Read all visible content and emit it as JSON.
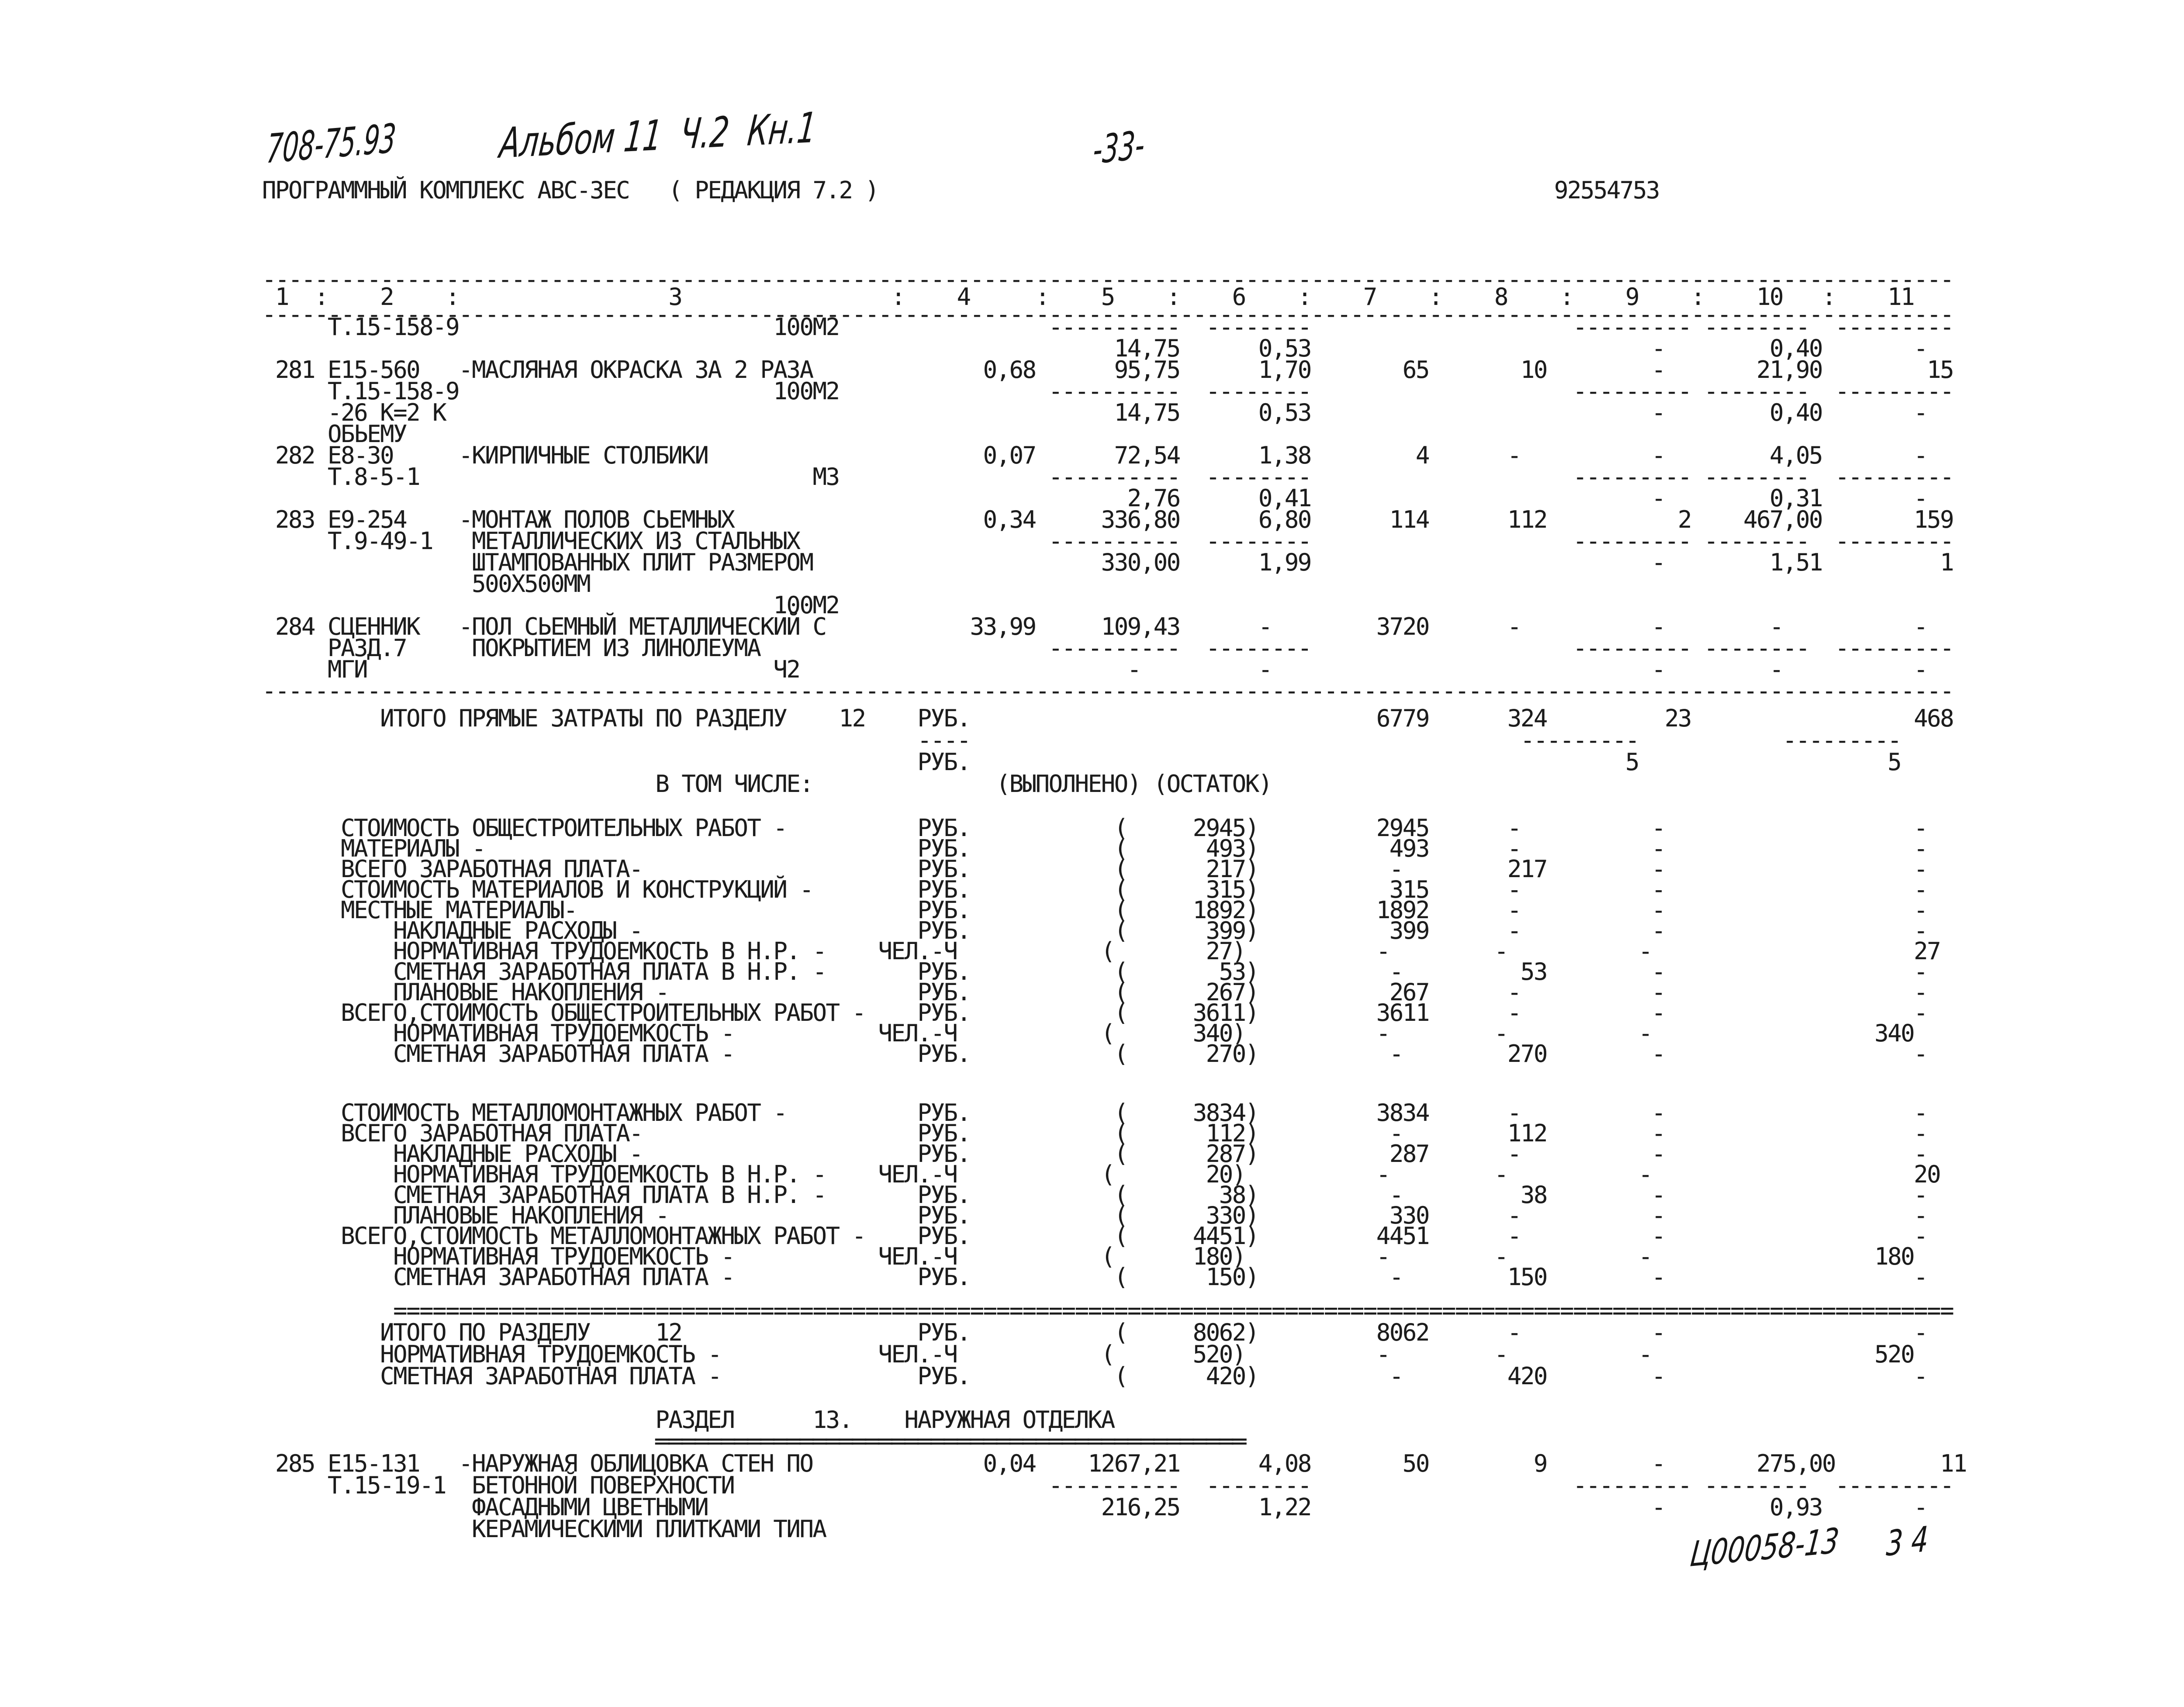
{
  "document": {
    "handwriting": {
      "top_left_code": "708-75.93",
      "top_album": "Альбом 11  Ч.2  Кн.1",
      "page_number": "-33-",
      "bottom_code": "Ц00058-13",
      "bottom_sheet": "3 4"
    },
    "typed_header": {
      "program_line": "ПРОГРАММНЫЙ КОМПЛЕКС АВС-3ЕС   ( РЕДАКЦИЯ 7.2 )",
      "doc_number": "92554753"
    },
    "table_columns": [
      "1",
      "2",
      "3",
      "4",
      "5",
      "6",
      "7",
      "8",
      "9",
      "10",
      "11"
    ],
    "sections": {
      "table_head": [
        "---------------------------------------------------------------------------------------------------------------------------------",
        " 1  :    2    :                3                :    4     :    5    :    6    :    7    :    8    :    9    :    10   :    11",
        "---------------------------------------------------------------------------------------------------------------------------------"
      ],
      "rows_section_12": [
        "     Т.15-158-9                        100М2                ----------  --------                    --------- --------  ---------",
        "                                                                 14,75      0,53                          -        0,40       -",
        " 281 Е15-560   -МАСЛЯНАЯ ОКРАСКА ЗА 2 РАЗА             0,68      95,75      1,70       65       10        -       21,90        15",
        "     Т.15-158-9                        100М2                ----------  --------                    --------- --------  ---------",
        "     -26 К=2 К                                                   14,75      0,53                          -        0,40       -",
        "     ОБЬЕМУ",
        " 282 Е8-30     -КИРПИЧНЫЕ СТОЛБИКИ                     0,07      72,54      1,38        4      -          -        4,05       -",
        "     Т.8-5-1                              М3                ----------  --------                    --------- --------  ---------",
        "                                                                  2,76      0,41                          -        0,31       -",
        " 283 Е9-254    -МОНТАЖ ПОЛОВ СЬЕМНЫХ                   0,34     336,80      6,80      114      112          2    467,00       159",
        "     Т.9-49-1   МЕТАЛЛИЧЕСКИХ ИЗ СТАЛЬНЫХ                   ----------  --------                    --------- --------  ---------",
        "                ШТАМПОВАННЫХ ПЛИТ РАЗМЕРОМ                      330,00      1,99                          -        1,51         1",
        "                500Х500ММ",
        "                                       100М2",
        " 284 СЦЕННИК   -ПОЛ СЬЕМНЫЙ МЕТАЛЛИЧЕСКИЙ С           33,99     109,43      -        3720      -          -        -          -",
        "     РАЗД.7     ПОКРЫТИЕМ ИЗ ЛИНОЛЕУМА                      ----------  --------                    --------- --------  ---------",
        "     МГИ                               Ч2                         -         -                             -        -          -",
        "---------------------------------------------------------------------------------------------------------------------------------"
      ],
      "totals_direct": [
        "         ИТОГО ПРЯМЫЕ ЗАТРАТЫ ПО РАЗДЕЛУ    12    РУБ.                               6779      324         23                 468",
        "                                                  ----                                          ---------           ---------",
        "                                                  РУБ.                                                  5                   5",
        "                              В ТОМ ЧИСЛЕ:              (ВЫПОЛНЕНО) (ОСТАТОК)"
      ],
      "breakdown_general": [
        "      СТОИМОСТЬ ОБЩЕСТРОИТЕЛЬНЫХ РАБОТ -          РУБ.           (     2945)         2945      -          -                   -",
        "      МАТЕРИАЛЫ -                                 РУБ.           (      493)          493      -          -                   -",
        "      ВСЕГО ЗАРАБОТНАЯ ПЛАТА-                     РУБ.           (      217)          -        217        -                   -",
        "      СТОИМОСТЬ МАТЕРИАЛОВ И КОНСТРУКЦИЙ -        РУБ.           (      315)          315      -          -                   -",
        "      МЕСТНЫЕ МАТЕРИАЛЫ-                          РУБ.           (     1892)         1892      -          -                   -",
        "          НАКЛАДНЫЕ РАСХОДЫ -                     РУБ.           (      399)          399      -          -                   -",
        "          НОРМАТИВНАЯ ТРУДОЕМКОСТЬ В Н.Р. -    ЧЕЛ.-Ч           (       27)          -        -          -                    27",
        "          СМЕТНАЯ ЗАРАБОТНАЯ ПЛАТА В Н.Р. -       РУБ.           (       53)          -         53        -                   -",
        "          ПЛАНОВЫЕ НАКОПЛЕНИЯ -                   РУБ.           (      267)          267      -          -                   -",
        "      ВСЕГО,СТОИМОСТЬ ОБЩЕСТРОИТЕЛЬНЫХ РАБОТ -    РУБ.           (     3611)         3611      -          -                   -",
        "          НОРМАТИВНАЯ ТРУДОЕМКОСТЬ -           ЧЕЛ.-Ч           (      340)          -        -          -                 340",
        "          СМЕТНАЯ ЗАРАБОТНАЯ ПЛАТА -              РУБ.           (      270)          -        270        -                   -"
      ],
      "breakdown_metal": [
        "      СТОИМОСТЬ МЕТАЛЛОМОНТАЖНЫХ РАБОТ -          РУБ.           (     3834)         3834      -          -                   -",
        "      ВСЕГО ЗАРАБОТНАЯ ПЛАТА-                     РУБ.           (      112)          -        112        -                   -",
        "          НАКЛАДНЫЕ РАСХОДЫ -                     РУБ.           (      287)          287      -          -                   -",
        "          НОРМАТИВНАЯ ТРУДОЕМКОСТЬ В Н.Р. -    ЧЕЛ.-Ч           (       20)          -        -          -                    20",
        "          СМЕТНАЯ ЗАРАБОТНАЯ ПЛАТА В Н.Р. -       РУБ.           (       38)          -         38        -                   -",
        "          ПЛАНОВЫЕ НАКОПЛЕНИЯ -                   РУБ.           (      330)          330      -          -                   -",
        "      ВСЕГО,СТОИМОСТЬ МЕТАЛЛОМОНТАЖНЫХ РАБОТ -    РУБ.           (     4451)         4451      -          -                   -",
        "          НОРМАТИВНАЯ ТРУДОЕМКОСТЬ -           ЧЕЛ.-Ч           (      180)          -        -          -                 180",
        "          СМЕТНАЯ ЗАРАБОТНАЯ ПЛАТА -              РУБ.           (      150)          -        150        -                   -"
      ],
      "totals_section_12": [
        "          =======================================================================================================================",
        "         ИТОГО ПО РАЗДЕЛУ     12                  РУБ.           (     8062)         8062      -          -                   -",
        "         НОРМАТИВНАЯ ТРУДОЕМКОСТЬ -            ЧЕЛ.-Ч           (      520)          -        -          -                 520",
        "         СМЕТНАЯ ЗАРАБОТНАЯ ПЛАТА -               РУБ.           (      420)          -        420        -                   -"
      ],
      "section_13": [
        "                              РАЗДЕЛ      13.    НАРУЖНАЯ ОТДЕЛКА",
        "                              ═════════════════════════════════════════════",
        " 285 Е15-131   -НАРУЖНАЯ ОБЛИЦОВКА СТЕН ПО             0,04    1267,21      4,08       50        9        -       275,00        11",
        "     Т.15-19-1  БЕТОННОЙ ПОВЕРХНОСТИ                        ----------  --------                    --------- --------  ---------",
        "                ФАСАДНЫМИ ЦВЕТНЫМИ                              216,25      1,22                          -        0,93       -",
        "                КЕРАМИЧЕСКИМИ ПЛИТКАМИ ТИПА"
      ]
    }
  }
}
